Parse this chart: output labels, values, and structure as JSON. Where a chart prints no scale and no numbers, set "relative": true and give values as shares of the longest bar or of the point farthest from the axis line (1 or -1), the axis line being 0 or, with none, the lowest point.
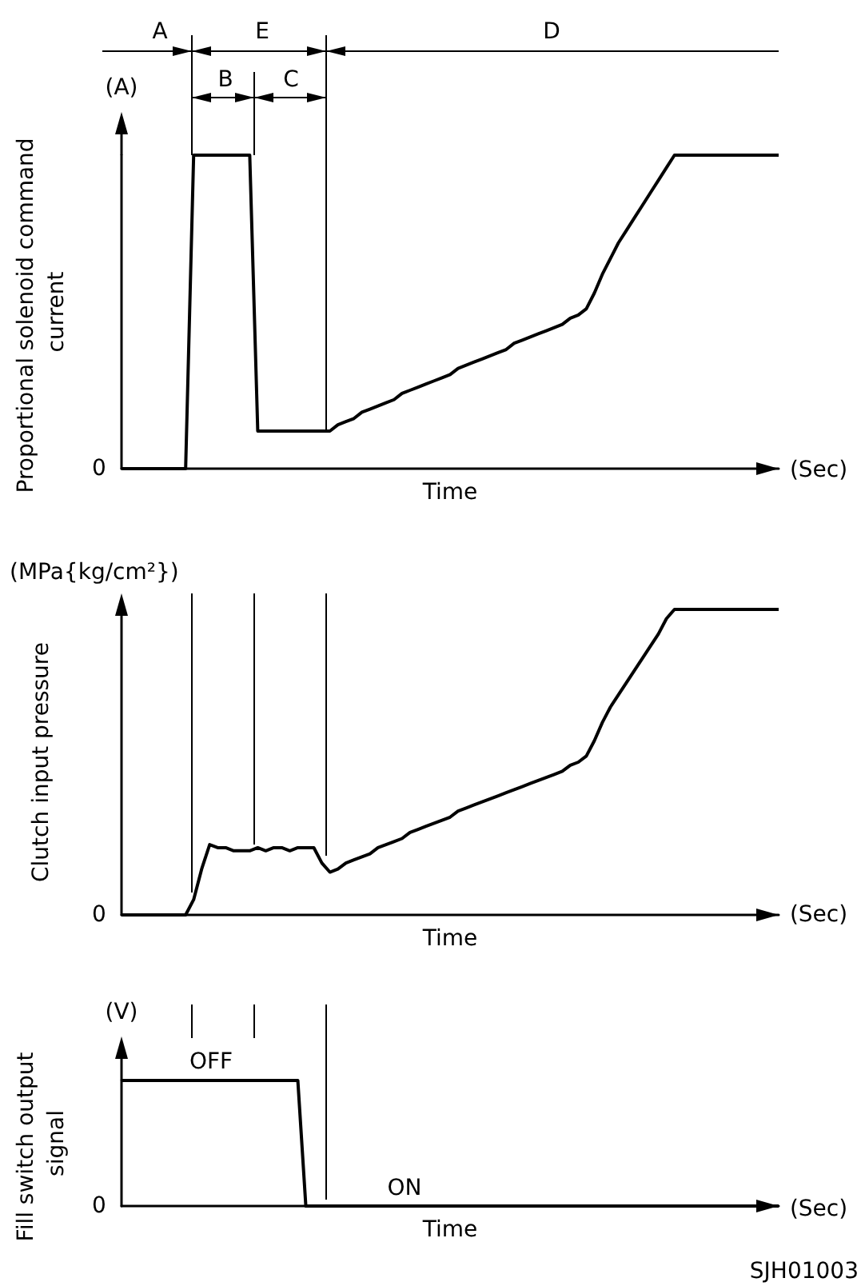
{
  "chart_data": [
    {
      "type": "line",
      "relative": true,
      "xlabel": "Time",
      "ylabel": "Proportional solenoid command current",
      "color": "#000000",
      "annotations": [
        "(A)",
        "0",
        "(Sec)",
        "A",
        "E",
        "B",
        "C",
        "D"
      ],
      "categories": [
        null,
        null,
        null,
        null,
        null,
        null,
        null,
        null,
        null,
        null,
        null,
        null,
        null,
        null,
        null,
        null,
        null,
        null,
        null,
        null,
        null,
        null,
        null,
        null,
        null,
        null,
        null,
        null,
        null,
        null,
        null,
        null,
        null,
        null,
        null,
        null,
        null,
        null,
        null,
        null,
        null,
        null,
        null,
        null,
        null,
        null,
        null,
        null,
        null,
        null,
        null,
        null,
        null,
        null,
        null,
        null,
        null,
        null,
        null,
        null,
        null,
        null,
        null,
        null,
        null,
        null,
        null,
        null,
        null,
        null,
        null,
        null,
        null,
        null,
        null,
        null,
        null,
        null,
        null,
        null,
        null,
        null,
        null
      ],
      "values": [
        0,
        0,
        0,
        0,
        0,
        0,
        0,
        0,
        0,
        1,
        1,
        1,
        1,
        1,
        1,
        1,
        1,
        0.12,
        0.12,
        0.12,
        0.12,
        0.12,
        0.12,
        0.12,
        0.12,
        0.12,
        0.12,
        0.14,
        0.15,
        0.16,
        0.18,
        0.19,
        0.2,
        0.21,
        0.22,
        0.24,
        0.25,
        0.26,
        0.27,
        0.28,
        0.29,
        0.3,
        0.32,
        0.33,
        0.34,
        0.35,
        0.36,
        0.37,
        0.38,
        0.4,
        0.41,
        0.42,
        0.43,
        0.44,
        0.45,
        0.46,
        0.48,
        0.49,
        0.51,
        0.56,
        0.62,
        0.67,
        0.72,
        0.76,
        0.8,
        0.84,
        0.88,
        0.92,
        0.96,
        1,
        1,
        1,
        1,
        1,
        1,
        1,
        1,
        1,
        1,
        1,
        1,
        1,
        1
      ]
    },
    {
      "type": "line",
      "relative": true,
      "xlabel": "Time",
      "ylabel": "Clutch input pressure",
      "color": "#000000",
      "annotations": [
        "(MPa{kg/cm²})",
        "0",
        "(Sec)"
      ],
      "categories": [
        null,
        null,
        null,
        null,
        null,
        null,
        null,
        null,
        null,
        null,
        null,
        null,
        null,
        null,
        null,
        null,
        null,
        null,
        null,
        null,
        null,
        null,
        null,
        null,
        null,
        null,
        null,
        null,
        null,
        null,
        null,
        null,
        null,
        null,
        null,
        null,
        null,
        null,
        null,
        null,
        null,
        null,
        null,
        null,
        null,
        null,
        null,
        null,
        null,
        null,
        null,
        null,
        null,
        null,
        null,
        null,
        null,
        null,
        null,
        null,
        null,
        null,
        null,
        null,
        null,
        null,
        null,
        null,
        null,
        null,
        null,
        null,
        null,
        null,
        null,
        null,
        null,
        null,
        null,
        null,
        null,
        null,
        null
      ],
      "values": [
        0,
        0,
        0,
        0,
        0,
        0,
        0,
        0,
        0,
        0.05,
        0.15,
        0.23,
        0.22,
        0.22,
        0.21,
        0.21,
        0.21,
        0.22,
        0.21,
        0.22,
        0.22,
        0.21,
        0.22,
        0.22,
        0.22,
        0.17,
        0.14,
        0.15,
        0.17,
        0.18,
        0.19,
        0.2,
        0.22,
        0.23,
        0.24,
        0.25,
        0.27,
        0.28,
        0.29,
        0.3,
        0.31,
        0.32,
        0.34,
        0.35,
        0.36,
        0.37,
        0.38,
        0.39,
        0.4,
        0.41,
        0.42,
        0.43,
        0.44,
        0.45,
        0.46,
        0.47,
        0.49,
        0.5,
        0.52,
        0.57,
        0.63,
        0.68,
        0.72,
        0.76,
        0.8,
        0.84,
        0.88,
        0.92,
        0.97,
        1,
        1,
        1,
        1,
        1,
        1,
        1,
        1,
        1,
        1,
        1,
        1,
        1,
        1
      ]
    },
    {
      "type": "line",
      "relative": true,
      "xlabel": "Time",
      "ylabel": "Fill switch output signal",
      "color": "#000000",
      "annotations": [
        "(V)",
        "0",
        "(Sec)",
        "OFF",
        "ON",
        "SJH01003"
      ],
      "categories": [
        null,
        null,
        null,
        null,
        null,
        null,
        null,
        null,
        null,
        null,
        null,
        null,
        null,
        null,
        null,
        null,
        null,
        null,
        null,
        null,
        null,
        null,
        null,
        null,
        null,
        null,
        null,
        null,
        null,
        null,
        null,
        null,
        null,
        null,
        null,
        null,
        null,
        null,
        null,
        null,
        null,
        null,
        null,
        null,
        null,
        null,
        null,
        null,
        null,
        null,
        null,
        null,
        null,
        null,
        null,
        null,
        null,
        null,
        null,
        null,
        null,
        null,
        null,
        null,
        null,
        null,
        null,
        null,
        null,
        null,
        null,
        null,
        null,
        null,
        null,
        null,
        null,
        null,
        null,
        null,
        null,
        null,
        null
      ],
      "values": [
        1,
        1,
        1,
        1,
        1,
        1,
        1,
        1,
        1,
        1,
        1,
        1,
        1,
        1,
        1,
        1,
        1,
        1,
        1,
        1,
        1,
        1,
        1,
        0,
        0,
        0,
        0,
        0,
        0,
        0,
        0,
        0,
        0,
        0,
        0,
        0,
        0,
        0,
        0,
        0,
        0,
        0,
        0,
        0,
        0,
        0,
        0,
        0,
        0,
        0,
        0,
        0,
        0,
        0,
        0,
        0,
        0,
        0,
        0,
        0,
        0,
        0,
        0,
        0,
        0,
        0,
        0,
        0,
        0,
        0,
        0,
        0,
        0,
        0,
        0,
        0,
        0,
        0,
        0,
        0,
        0,
        0,
        0
      ]
    }
  ]
}
